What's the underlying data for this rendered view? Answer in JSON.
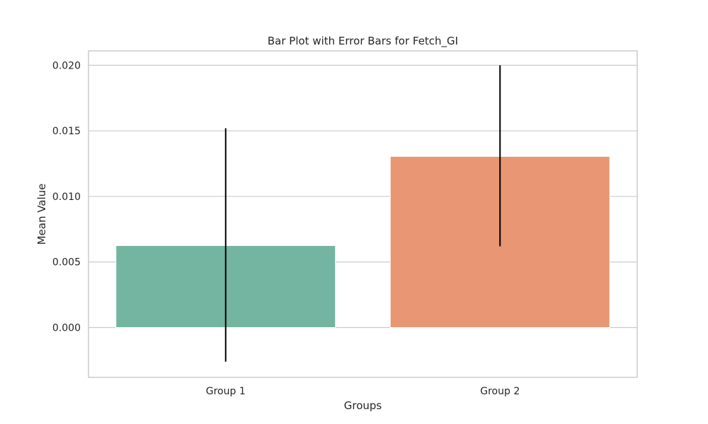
{
  "chart_data": {
    "type": "bar",
    "title": "Bar Plot with Error Bars for Fetch_GI",
    "xlabel": "Groups",
    "ylabel": "Mean Value",
    "categories": [
      "Group 1",
      "Group 2"
    ],
    "values": [
      0.00625,
      0.01305
    ],
    "error_bars": [
      {
        "low": -0.0026,
        "high": 0.0152
      },
      {
        "low": 0.0062,
        "high": 0.02
      }
    ],
    "colors": [
      "#73b5a0",
      "#e89674"
    ],
    "ylim": [
      -0.0038,
      0.0211
    ],
    "yticks": [
      0.0,
      0.005,
      0.01,
      0.015,
      0.02
    ],
    "ytick_labels": [
      "0.000",
      "0.005",
      "0.010",
      "0.015",
      "0.020"
    ],
    "grid": true
  }
}
